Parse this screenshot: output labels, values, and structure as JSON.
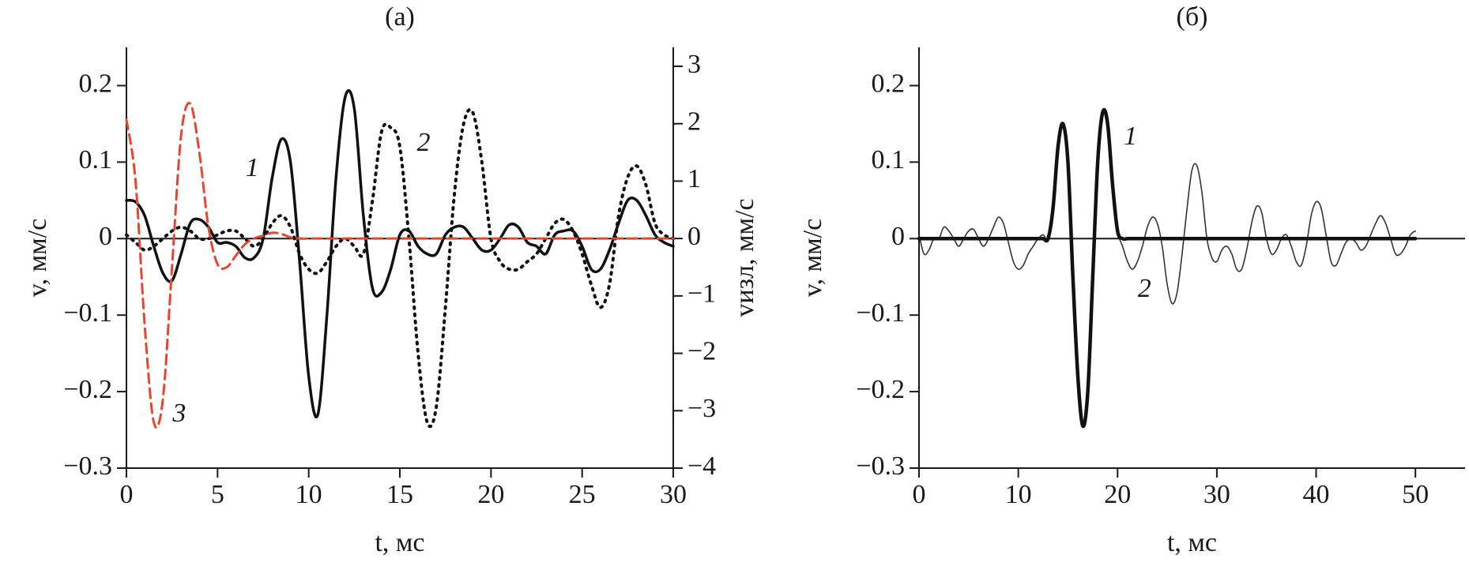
{
  "chart_data": [
    {
      "type": "line",
      "title": "(а)",
      "xlabel": "t, мс",
      "ylabel": "v, мм/с",
      "y2label": "vизл, мм/с",
      "xlim": [
        0,
        30
      ],
      "xticks": [
        0,
        5,
        10,
        15,
        20,
        25,
        30
      ],
      "ylim": [
        -0.3,
        0.25
      ],
      "yticks": [
        {
          "value": -0.3,
          "label": "−0.3"
        },
        {
          "value": -0.2,
          "label": "−0.2"
        },
        {
          "value": -0.1,
          "label": "−0.1"
        },
        0,
        0.1,
        0.2
      ],
      "y2lim": [
        -4,
        3.33
      ],
      "y2ticks": [
        {
          "value": -4,
          "label": "−4"
        },
        {
          "value": -3,
          "label": "−3"
        },
        {
          "value": -2,
          "label": "−2"
        },
        {
          "value": -1,
          "label": "−1"
        },
        0,
        1,
        2,
        3
      ],
      "x": [
        0,
        0.5,
        1,
        1.5,
        2,
        2.5,
        3,
        3.5,
        4,
        4.5,
        5,
        5.5,
        6,
        6.5,
        7,
        7.5,
        8,
        8.5,
        9,
        9.5,
        10,
        10.5,
        11,
        11.5,
        12,
        12.5,
        13,
        13.5,
        14,
        14.5,
        15,
        15.5,
        16,
        16.5,
        17,
        17.5,
        18,
        18.5,
        19,
        19.5,
        20,
        20.5,
        21,
        21.5,
        22,
        22.5,
        23,
        23.5,
        24,
        24.5,
        25,
        25.5,
        26,
        26.5,
        27,
        27.5,
        28,
        28.5,
        29,
        29.5,
        30
      ],
      "series": [
        {
          "color": "#111111",
          "style": "solid",
          "linewidth": 3.5,
          "values": [
            0.05,
            0.048,
            0.03,
            -0.01,
            -0.045,
            -0.055,
            -0.02,
            0.02,
            0.025,
            0.015,
            -0.005,
            -0.005,
            -0.01,
            -0.025,
            -0.025,
            0,
            0.08,
            0.13,
            0.1,
            -0.03,
            -0.18,
            -0.23,
            -0.1,
            0.08,
            0.185,
            0.17,
            0.03,
            -0.065,
            -0.07,
            -0.04,
            0.005,
            0.01,
            -0.01,
            -0.02,
            -0.02,
            0.005,
            0.015,
            0.015,
            0,
            -0.015,
            -0.015,
            0,
            0.018,
            0.015,
            -0.005,
            -0.01,
            -0.02,
            0.005,
            0.01,
            0.01,
            -0.01,
            -0.04,
            -0.04,
            -0.015,
            0.02,
            0.05,
            0.05,
            0.03,
            0.005,
            -0.005,
            -0.01
          ]
        },
        {
          "color": "#111111",
          "style": "dotted",
          "linewidth": 4,
          "values": [
            0.005,
            -0.005,
            -0.015,
            -0.01,
            0,
            0.01,
            0.015,
            0.01,
            0,
            0,
            0.005,
            0.01,
            0.01,
            0,
            -0.01,
            0,
            0.02,
            0.03,
            0.015,
            -0.02,
            -0.04,
            -0.045,
            -0.03,
            -0.01,
            0,
            -0.01,
            -0.02,
            0.05,
            0.14,
            0.145,
            0.12,
            0,
            -0.15,
            -0.24,
            -0.22,
            -0.09,
            0.06,
            0.15,
            0.165,
            0.1,
            0,
            -0.03,
            -0.04,
            -0.04,
            -0.03,
            -0.02,
            0,
            0.02,
            0.025,
            0.01,
            -0.02,
            -0.06,
            -0.09,
            -0.06,
            0.03,
            0.08,
            0.095,
            0.07,
            0.02,
            0.005,
            0
          ]
        },
        {
          "color": "#e8452c",
          "style": "dashed",
          "linewidth": 3,
          "axis": "y2",
          "values": [
            2.07,
            1.0,
            -1.5,
            -3.2,
            -2.8,
            -0.5,
            1.8,
            2.35,
            1.5,
            0.2,
            -0.45,
            -0.5,
            -0.3,
            -0.1,
            0,
            0.05,
            0.1,
            0.08,
            0.02,
            0,
            0,
            0,
            0,
            0,
            0,
            0,
            0,
            0,
            0,
            0,
            0,
            0,
            0,
            0,
            0,
            0,
            0,
            0,
            0,
            0,
            0,
            0,
            0,
            0,
            0,
            0,
            0,
            0,
            0,
            0,
            0,
            0,
            0,
            0,
            0,
            0,
            0,
            0,
            0,
            0,
            0
          ]
        }
      ],
      "annotations": [
        "1",
        "2",
        "3"
      ]
    },
    {
      "type": "line",
      "title": "(б)",
      "xlabel": "t, мс",
      "ylabel": "v, мм/с",
      "xlim": [
        0,
        55
      ],
      "xticks": [
        0,
        10,
        20,
        30,
        40,
        50
      ],
      "ylim": [
        -0.3,
        0.25
      ],
      "yticks": [
        {
          "value": -0.3,
          "label": "−0.3"
        },
        {
          "value": -0.2,
          "label": "−0.2"
        },
        {
          "value": -0.1,
          "label": "−0.1"
        },
        0,
        0.1,
        0.2
      ],
      "x": [
        0,
        0.5,
        1,
        1.5,
        2,
        2.5,
        3,
        3.5,
        4,
        4.5,
        5,
        5.5,
        6,
        6.5,
        7,
        7.5,
        8,
        8.5,
        9,
        9.5,
        10,
        10.5,
        11,
        11.5,
        12,
        12.5,
        13,
        13.5,
        14,
        14.5,
        15,
        15.5,
        16,
        16.5,
        17,
        17.5,
        18,
        18.5,
        19,
        19.5,
        20,
        20.5,
        21,
        21.5,
        22,
        22.5,
        23,
        23.5,
        24,
        24.5,
        25,
        25.5,
        26,
        26.5,
        27,
        27.5,
        28,
        28.5,
        29,
        29.5,
        30,
        30.5,
        31,
        31.5,
        32,
        32.5,
        33,
        33.5,
        34,
        34.5,
        35,
        35.5,
        36,
        36.5,
        37,
        37.5,
        38,
        38.5,
        39,
        39.5,
        40,
        40.5,
        41,
        41.5,
        42,
        42.5,
        43,
        43.5,
        44,
        44.5,
        45,
        45.5,
        46,
        46.5,
        47,
        47.5,
        48,
        48.5,
        49,
        49.5,
        50
      ],
      "series": [
        {
          "color": "#333333",
          "style": "solid",
          "linewidth": 1.6,
          "values": [
            0.005,
            -0.02,
            -0.015,
            0,
            0,
            0.015,
            0.01,
            0,
            -0.01,
            0,
            0.01,
            0.012,
            0,
            -0.01,
            0,
            0.015,
            0.028,
            0.02,
            -0.005,
            -0.03,
            -0.04,
            -0.035,
            -0.02,
            -0.01,
            0,
            0.005,
            0,
            0.04,
            0.12,
            0.15,
            0.1,
            -0.05,
            -0.18,
            -0.245,
            -0.2,
            -0.05,
            0.1,
            0.165,
            0.15,
            0.07,
            0.01,
            -0.01,
            -0.03,
            -0.04,
            -0.03,
            -0.01,
            0.015,
            0.028,
            0.02,
            -0.01,
            -0.06,
            -0.085,
            -0.07,
            -0.02,
            0.04,
            0.09,
            0.095,
            0.06,
            0,
            -0.025,
            -0.03,
            -0.015,
            -0.01,
            -0.02,
            -0.04,
            -0.04,
            -0.015,
            0.02,
            0.042,
            0.035,
            0,
            -0.02,
            -0.015,
            0,
            0.005,
            -0.01,
            -0.03,
            -0.035,
            -0.01,
            0.03,
            0.048,
            0.04,
            0.005,
            -0.03,
            -0.035,
            -0.02,
            -0.005,
            0,
            -0.005,
            -0.015,
            -0.01,
            0.005,
            0.02,
            0.03,
            0.02,
            0,
            -0.02,
            -0.02,
            -0.01,
            0.005,
            0.01
          ]
        },
        {
          "color": "#111111",
          "style": "solid",
          "linewidth": 4.5,
          "values": [
            0,
            0,
            0,
            0,
            0,
            0,
            0,
            0,
            0,
            0,
            0,
            0,
            0,
            0,
            0,
            0,
            0,
            0,
            0,
            0,
            0,
            0,
            0,
            0,
            0,
            0,
            0,
            0.04,
            0.12,
            0.15,
            0.1,
            -0.05,
            -0.18,
            -0.245,
            -0.2,
            -0.05,
            0.1,
            0.165,
            0.15,
            0.07,
            0.01,
            0,
            0,
            0,
            0,
            0,
            0,
            0,
            0,
            0,
            0,
            0,
            0,
            0,
            0,
            0,
            0,
            0,
            0,
            0,
            0,
            0,
            0,
            0,
            0,
            0,
            0,
            0,
            0,
            0,
            0,
            0,
            0,
            0,
            0,
            0,
            0,
            0,
            0,
            0,
            0,
            0,
            0,
            0,
            0,
            0,
            0,
            0,
            0,
            0,
            0,
            0,
            0,
            0,
            0,
            0,
            0,
            0,
            0,
            0,
            0
          ]
        }
      ],
      "annotations": [
        "1",
        "2"
      ]
    }
  ]
}
